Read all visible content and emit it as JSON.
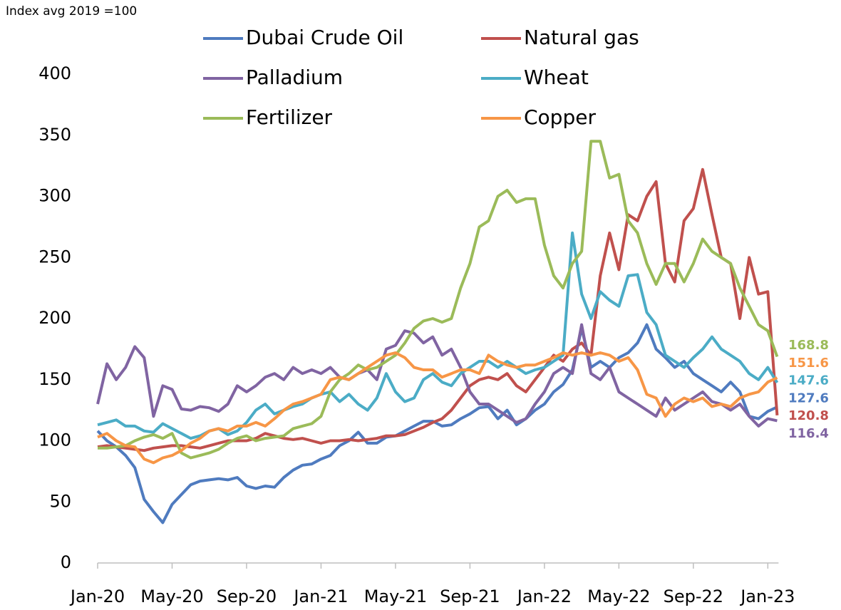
{
  "chart_data": {
    "type": "line",
    "y_label": "Index avg 2019 =100",
    "categories": [
      "Jan-20",
      null,
      null,
      null,
      null,
      null,
      null,
      null,
      "May-20",
      null,
      null,
      null,
      null,
      null,
      null,
      null,
      "Sep-20",
      null,
      null,
      null,
      null,
      null,
      null,
      null,
      "Jan-21",
      null,
      null,
      null,
      null,
      null,
      null,
      null,
      "May-21",
      null,
      null,
      null,
      null,
      null,
      null,
      null,
      "Sep-21",
      null,
      null,
      null,
      null,
      null,
      null,
      null,
      "Jan-22",
      null,
      null,
      null,
      null,
      null,
      null,
      null,
      "May-22",
      null,
      null,
      null,
      null,
      null,
      null,
      null,
      "Sep-22",
      null,
      null,
      null,
      null,
      null,
      null,
      null,
      "Jan-23",
      null
    ],
    "ylim": [
      0,
      400
    ],
    "yticks": [
      0,
      50,
      100,
      150,
      200,
      250,
      300,
      350,
      400
    ],
    "grid": false,
    "series": [
      {
        "name": "Dubai Crude Oil",
        "color": "#4f7bbf",
        "values": [
          108,
          100,
          95,
          88,
          78,
          52,
          42,
          33,
          48,
          56,
          64,
          67,
          68,
          69,
          68,
          70,
          63,
          61,
          63,
          62,
          70,
          76,
          80,
          81,
          85,
          88,
          96,
          100,
          107,
          98,
          98,
          103,
          104,
          108,
          112,
          116,
          116,
          112,
          113,
          118,
          122,
          127,
          128,
          118,
          125,
          113,
          118,
          125,
          130,
          140,
          146,
          158,
          192,
          160,
          165,
          160,
          168,
          172,
          180,
          195,
          175,
          168,
          160,
          165,
          155,
          150,
          145,
          140,
          148,
          140,
          120,
          118,
          124,
          127.6
        ]
      },
      {
        "name": "Natural gas",
        "color": "#c0504d",
        "values": [
          95,
          96,
          95,
          94,
          93,
          92,
          94,
          95,
          96,
          96,
          95,
          94,
          96,
          98,
          100,
          100,
          100,
          102,
          106,
          104,
          102,
          101,
          102,
          100,
          98,
          100,
          100,
          101,
          100,
          101,
          102,
          104,
          104,
          105,
          108,
          111,
          115,
          118,
          125,
          135,
          145,
          150,
          152,
          150,
          155,
          145,
          140,
          150,
          160,
          170,
          165,
          175,
          180,
          170,
          235,
          270,
          240,
          285,
          280,
          300,
          312,
          245,
          230,
          280,
          290,
          322,
          285,
          250,
          245,
          200,
          250,
          220,
          222,
          120.8
        ]
      },
      {
        "name": "Palladium",
        "color": "#8064a2",
        "values": [
          130,
          163,
          150,
          160,
          177,
          168,
          120,
          145,
          142,
          126,
          125,
          128,
          127,
          124,
          130,
          145,
          140,
          145,
          152,
          155,
          150,
          160,
          155,
          158,
          155,
          160,
          152,
          150,
          155,
          158,
          150,
          175,
          178,
          190,
          188,
          180,
          185,
          170,
          175,
          160,
          140,
          130,
          130,
          125,
          120,
          115,
          118,
          130,
          140,
          155,
          160,
          155,
          195,
          155,
          150,
          160,
          140,
          135,
          130,
          125,
          120,
          135,
          125,
          130,
          135,
          140,
          132,
          130,
          125,
          130,
          120,
          112,
          118,
          116.4
        ]
      },
      {
        "name": "Wheat",
        "color": "#4bacc6",
        "values": [
          113,
          115,
          117,
          112,
          112,
          108,
          107,
          114,
          110,
          106,
          102,
          104,
          108,
          110,
          105,
          108,
          115,
          125,
          130,
          122,
          125,
          128,
          130,
          135,
          138,
          140,
          132,
          138,
          130,
          125,
          135,
          155,
          140,
          132,
          135,
          150,
          155,
          148,
          145,
          155,
          160,
          165,
          165,
          160,
          165,
          160,
          155,
          158,
          160,
          165,
          170,
          270,
          220,
          200,
          222,
          215,
          210,
          235,
          236,
          205,
          195,
          170,
          165,
          160,
          168,
          175,
          185,
          175,
          170,
          165,
          155,
          150,
          160,
          147.6
        ]
      },
      {
        "name": "Fertilizer",
        "color": "#9bbb59",
        "values": [
          94,
          94,
          95,
          96,
          100,
          103,
          105,
          102,
          106,
          90,
          86,
          88,
          90,
          93,
          98,
          102,
          104,
          100,
          102,
          103,
          104,
          110,
          112,
          114,
          120,
          140,
          150,
          155,
          162,
          158,
          160,
          165,
          170,
          180,
          192,
          198,
          200,
          197,
          200,
          225,
          245,
          275,
          280,
          300,
          305,
          295,
          298,
          298,
          260,
          235,
          225,
          245,
          255,
          345,
          345,
          315,
          318,
          280,
          270,
          245,
          228,
          245,
          245,
          230,
          245,
          265,
          255,
          250,
          245,
          225,
          210,
          195,
          190,
          168.8
        ]
      },
      {
        "name": "Copper",
        "color": "#f79646",
        "values": [
          103,
          106,
          100,
          96,
          95,
          85,
          82,
          86,
          88,
          92,
          98,
          102,
          108,
          110,
          108,
          112,
          112,
          115,
          112,
          118,
          125,
          130,
          132,
          135,
          138,
          150,
          152,
          150,
          155,
          160,
          165,
          170,
          172,
          168,
          160,
          158,
          158,
          152,
          155,
          158,
          158,
          155,
          170,
          165,
          162,
          160,
          162,
          162,
          165,
          168,
          172,
          170,
          172,
          170,
          172,
          170,
          165,
          168,
          158,
          138,
          135,
          120,
          130,
          135,
          132,
          135,
          128,
          130,
          128,
          135,
          138,
          140,
          148,
          151.6
        ]
      }
    ]
  }
}
